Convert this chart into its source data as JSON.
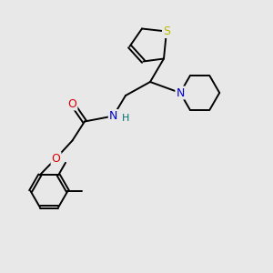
{
  "background_color": "#e8e8e8",
  "bond_color": "#000000",
  "atom_colors": {
    "S": "#b8b800",
    "O": "#dd0000",
    "N_amide": "#0000cc",
    "N_piperidine": "#0000cc",
    "H": "#007070",
    "C": "#000000"
  },
  "bond_width": 1.4,
  "figsize": [
    3.0,
    3.0
  ],
  "dpi": 100,
  "font_size": 8
}
